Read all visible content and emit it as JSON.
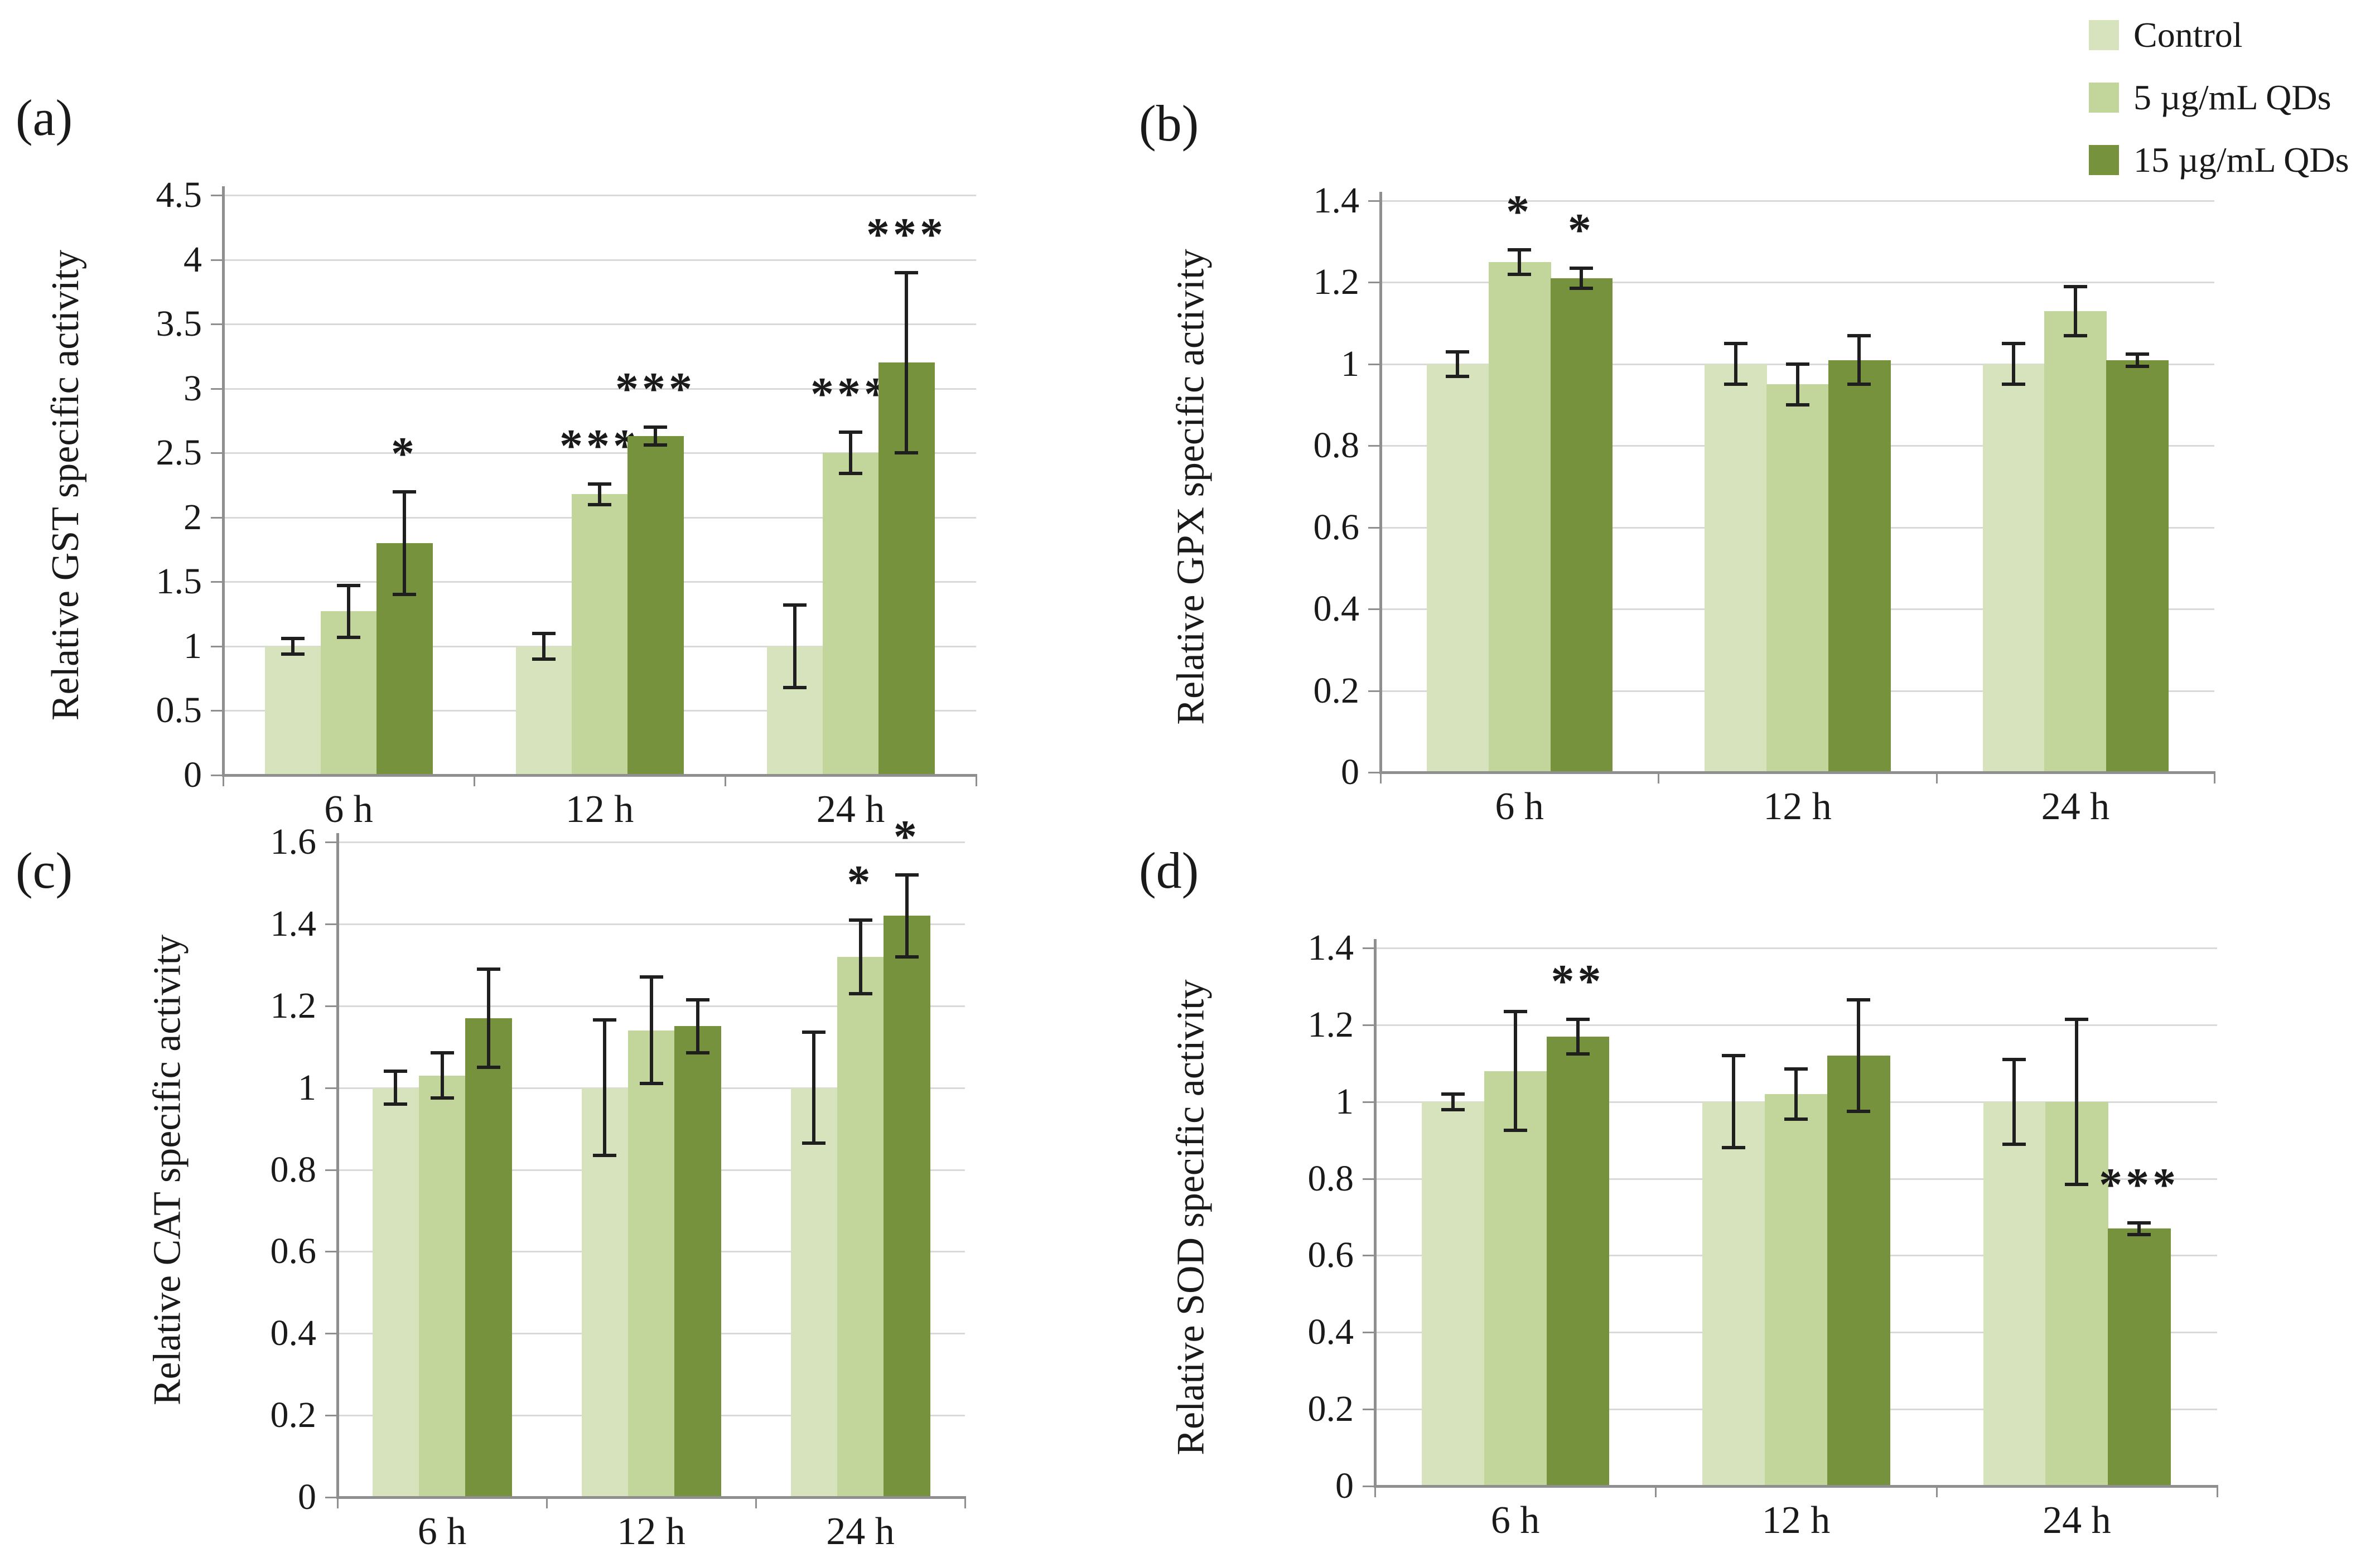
{
  "legend": {
    "entries": [
      {
        "label": "Control",
        "color": "#d6e3bc",
        "icon": "swatch-square"
      },
      {
        "label": "5 µg/mL QDs",
        "color": "#c2d69b",
        "icon": "swatch-square"
      },
      {
        "label": "15 µg/mL QDs",
        "color": "#76923c",
        "icon": "swatch-square"
      }
    ],
    "position": "top-right"
  },
  "chart_data": [
    {
      "id": "a",
      "panel_label": "(a)",
      "type": "bar",
      "title": "",
      "xlabel": "",
      "ylabel": "Relative GST specific activity",
      "ylim": [
        0,
        4.5
      ],
      "ytick_step": 0.5,
      "grid": true,
      "categories": [
        "6 h",
        "12 h",
        "24 h"
      ],
      "series": [
        {
          "name": "Control",
          "color": "#d6e3bc",
          "values": [
            1.0,
            1.0,
            1.0
          ],
          "errors": [
            0.06,
            0.1,
            0.32
          ],
          "sig": [
            "",
            "",
            ""
          ]
        },
        {
          "name": "5 µg/mL QDs",
          "color": "#c2d69b",
          "values": [
            1.27,
            2.18,
            2.5
          ],
          "errors": [
            0.2,
            0.08,
            0.16
          ],
          "sig": [
            "",
            "***",
            "***"
          ]
        },
        {
          "name": "15 µg/mL QDs",
          "color": "#76923c",
          "values": [
            1.8,
            2.63,
            3.2
          ],
          "errors": [
            0.4,
            0.07,
            0.7
          ],
          "sig": [
            "*",
            "***",
            "***"
          ]
        }
      ]
    },
    {
      "id": "b",
      "panel_label": "(b)",
      "type": "bar",
      "title": "",
      "xlabel": "",
      "ylabel": "Relative GPX specific activity",
      "ylim": [
        0,
        1.4
      ],
      "ytick_step": 0.2,
      "grid": true,
      "categories": [
        "6 h",
        "12 h",
        "24 h"
      ],
      "series": [
        {
          "name": "Control",
          "color": "#d6e3bc",
          "values": [
            1.0,
            1.0,
            1.0
          ],
          "errors": [
            0.03,
            0.05,
            0.05
          ],
          "sig": [
            "",
            "",
            ""
          ]
        },
        {
          "name": "5 µg/mL QDs",
          "color": "#c2d69b",
          "values": [
            1.25,
            0.95,
            1.13
          ],
          "errors": [
            0.03,
            0.05,
            0.06
          ],
          "sig": [
            "*",
            "",
            ""
          ]
        },
        {
          "name": "15 µg/mL QDs",
          "color": "#76923c",
          "values": [
            1.21,
            1.01,
            1.01
          ],
          "errors": [
            0.025,
            0.06,
            0.015
          ],
          "sig": [
            "*",
            "",
            ""
          ]
        }
      ]
    },
    {
      "id": "c",
      "panel_label": "(c)",
      "type": "bar",
      "title": "",
      "xlabel": "",
      "ylabel": "Relative CAT specific activity",
      "ylim": [
        0,
        1.6
      ],
      "ytick_step": 0.2,
      "grid": true,
      "categories": [
        "6 h",
        "12 h",
        "24 h"
      ],
      "series": [
        {
          "name": "Control",
          "color": "#d6e3bc",
          "values": [
            1.0,
            1.0,
            1.0
          ],
          "errors": [
            0.04,
            0.165,
            0.135
          ],
          "sig": [
            "",
            "",
            ""
          ]
        },
        {
          "name": "5 µg/mL QDs",
          "color": "#c2d69b",
          "values": [
            1.03,
            1.14,
            1.32
          ],
          "errors": [
            0.055,
            0.13,
            0.09
          ],
          "sig": [
            "",
            "",
            "*"
          ]
        },
        {
          "name": "15 µg/mL QDs",
          "color": "#76923c",
          "values": [
            1.17,
            1.15,
            1.42
          ],
          "errors": [
            0.12,
            0.065,
            0.1
          ],
          "sig": [
            "",
            "",
            "*"
          ]
        }
      ]
    },
    {
      "id": "d",
      "panel_label": "(d)",
      "type": "bar",
      "title": "",
      "xlabel": "",
      "ylabel": "Relative SOD specific activity",
      "ylim": [
        0,
        1.4
      ],
      "ytick_step": 0.2,
      "grid": true,
      "categories": [
        "6 h",
        "12 h",
        "24 h"
      ],
      "series": [
        {
          "name": "Control",
          "color": "#d6e3bc",
          "values": [
            1.0,
            1.0,
            1.0
          ],
          "errors": [
            0.02,
            0.12,
            0.11
          ],
          "sig": [
            "",
            "",
            ""
          ]
        },
        {
          "name": "5 µg/mL QDs",
          "color": "#c2d69b",
          "values": [
            1.08,
            1.02,
            1.0
          ],
          "errors": [
            0.155,
            0.065,
            0.215
          ],
          "sig": [
            "",
            "",
            ""
          ]
        },
        {
          "name": "15 µg/mL QDs",
          "color": "#76923c",
          "values": [
            1.17,
            1.12,
            0.67
          ],
          "errors": [
            0.045,
            0.145,
            0.015
          ],
          "sig": [
            "**",
            "",
            "***"
          ]
        }
      ]
    }
  ],
  "colors": {
    "gridline": "#d9d9d9",
    "axis": "#8f8f8f",
    "error_bar": "#1f1f1f",
    "text": "#1a1a1a",
    "background": "#ffffff"
  }
}
